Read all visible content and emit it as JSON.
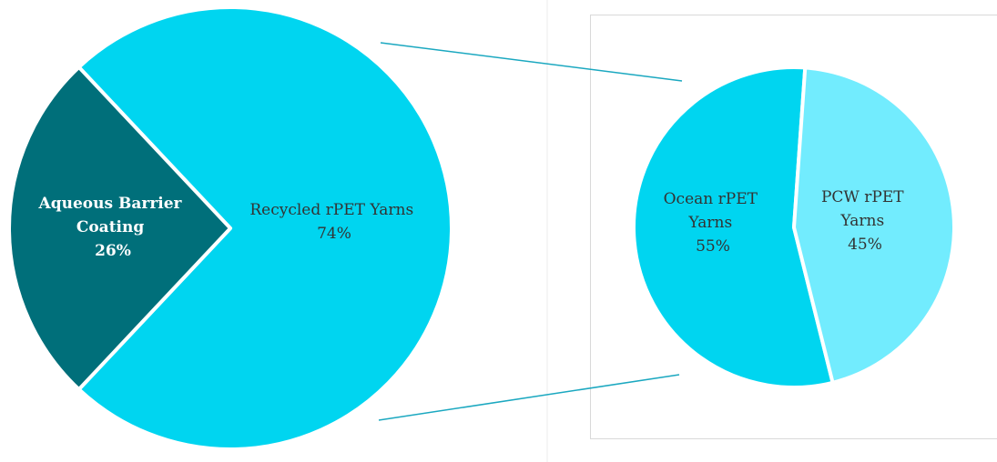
{
  "chart_data": [
    {
      "type": "pie",
      "title": "",
      "slices": [
        {
          "label_lines": [
            "Recycled rPET Yarns"
          ],
          "value_label": "74%",
          "value": 74,
          "color": "#00d5f0"
        },
        {
          "label_lines": [
            "Aqueous Barrier",
            "Coating"
          ],
          "value_label": "26%",
          "value": 26,
          "color": "#006f7a"
        }
      ]
    },
    {
      "type": "pie",
      "title": "",
      "breakdown_of": "Recycled rPET Yarns",
      "slices": [
        {
          "label_lines": [
            "Ocean rPET",
            "Yarns"
          ],
          "value_label": "55%",
          "value": 55,
          "color": "#00d5f0"
        },
        {
          "label_lines": [
            "PCW rPET",
            "Yarns"
          ],
          "value_label": "45%",
          "value": 45,
          "color": "#72ecfe"
        }
      ]
    }
  ],
  "colors": {
    "connector": "#1ba8c0",
    "frame": "#d9d9d9",
    "slice_border": "#ffffff"
  }
}
